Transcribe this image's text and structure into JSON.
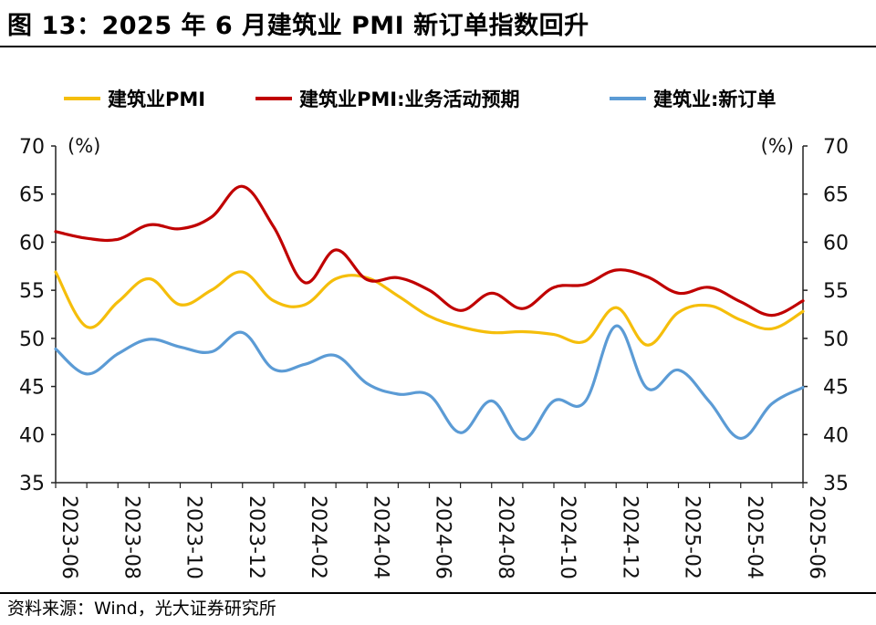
{
  "header": {
    "title": "图 13：2025 年 6 月建筑业 PMI 新订单指数回升"
  },
  "footer": {
    "source": "资料来源：Wind，光大证券研究所"
  },
  "chart_data": {
    "type": "line",
    "x": [
      "2023-06",
      "2023-07",
      "2023-08",
      "2023-09",
      "2023-10",
      "2023-11",
      "2023-12",
      "2024-01",
      "2024-02",
      "2024-03",
      "2024-04",
      "2024-05",
      "2024-06",
      "2024-07",
      "2024-08",
      "2024-09",
      "2024-10",
      "2024-11",
      "2024-12",
      "2025-01",
      "2025-02",
      "2025-03",
      "2025-04",
      "2025-05",
      "2025-06"
    ],
    "x_tick_labels": [
      "2023-06",
      "2023-08",
      "2023-10",
      "2023-12",
      "2024-02",
      "2024-04",
      "2024-06",
      "2024-08",
      "2024-10",
      "2024-12",
      "2025-02",
      "2025-04",
      "2025-06"
    ],
    "y_left": {
      "min": 35,
      "max": 70,
      "ticks": [
        35,
        40,
        45,
        50,
        55,
        60,
        65,
        70
      ],
      "unit": "(%)"
    },
    "y_right": {
      "min": 35,
      "max": 70,
      "ticks": [
        35,
        40,
        45,
        50,
        55,
        60,
        65,
        70
      ],
      "unit": "(%)"
    },
    "series": [
      {
        "name": "建筑业PMI",
        "color": "#F5BE0B",
        "values": [
          56.9,
          51.2,
          53.8,
          56.2,
          53.5,
          55.0,
          56.9,
          53.9,
          53.5,
          56.2,
          56.3,
          54.4,
          52.3,
          51.2,
          50.6,
          50.7,
          50.4,
          49.7,
          53.2,
          49.3,
          52.7,
          53.4,
          51.9,
          51.0,
          52.8
        ]
      },
      {
        "name": "建筑业PMI:业务活动预期",
        "color": "#C00000",
        "values": [
          61.1,
          60.4,
          60.3,
          61.8,
          61.4,
          62.6,
          65.8,
          61.6,
          55.8,
          59.2,
          56.1,
          56.3,
          55.0,
          52.9,
          54.7,
          53.1,
          55.3,
          55.6,
          57.1,
          56.4,
          54.7,
          55.3,
          53.8,
          52.4,
          53.9
        ]
      },
      {
        "name": "建筑业:新订单",
        "color": "#5B9BD5",
        "values": [
          48.9,
          46.3,
          48.4,
          49.9,
          49.1,
          48.6,
          50.6,
          46.8,
          47.3,
          48.2,
          45.3,
          44.2,
          44.1,
          40.2,
          43.5,
          39.5,
          43.5,
          43.4,
          51.3,
          44.8,
          46.7,
          43.4,
          39.6,
          43.2,
          44.9
        ]
      }
    ]
  }
}
